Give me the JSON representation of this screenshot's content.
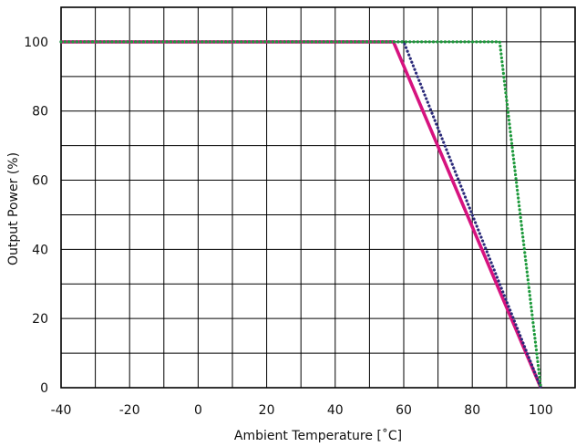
{
  "chart_data": {
    "type": "line",
    "title": "",
    "xlabel": "Ambient Temperature [˚C]",
    "ylabel": "Output Power (%)",
    "xlim": [
      -40,
      110
    ],
    "ylim": [
      0,
      110
    ],
    "x_ticks": [
      -40,
      -20,
      0,
      20,
      40,
      60,
      80,
      100
    ],
    "y_ticks": [
      0,
      20,
      40,
      60,
      80,
      100
    ],
    "x_gridlines": [
      -40,
      -30,
      -20,
      -10,
      0,
      10,
      20,
      30,
      40,
      50,
      60,
      70,
      80,
      90,
      100,
      110
    ],
    "y_gridlines": [
      0,
      10,
      20,
      30,
      40,
      50,
      60,
      70,
      80,
      90,
      100,
      110
    ],
    "grid": true,
    "legend": "none",
    "series": [
      {
        "color": "#d6137f",
        "style": "solid",
        "points": [
          [
            -40,
            100
          ],
          [
            57,
            100
          ],
          [
            100,
            0
          ]
        ]
      },
      {
        "color": "#2b2a7a",
        "style": "dotted",
        "points": [
          [
            -40,
            100
          ],
          [
            60,
            100
          ],
          [
            100,
            0
          ]
        ]
      },
      {
        "color": "#1e9a3c",
        "style": "dotted",
        "points": [
          [
            -40,
            100
          ],
          [
            88,
            100
          ],
          [
            100,
            0
          ]
        ]
      }
    ]
  }
}
